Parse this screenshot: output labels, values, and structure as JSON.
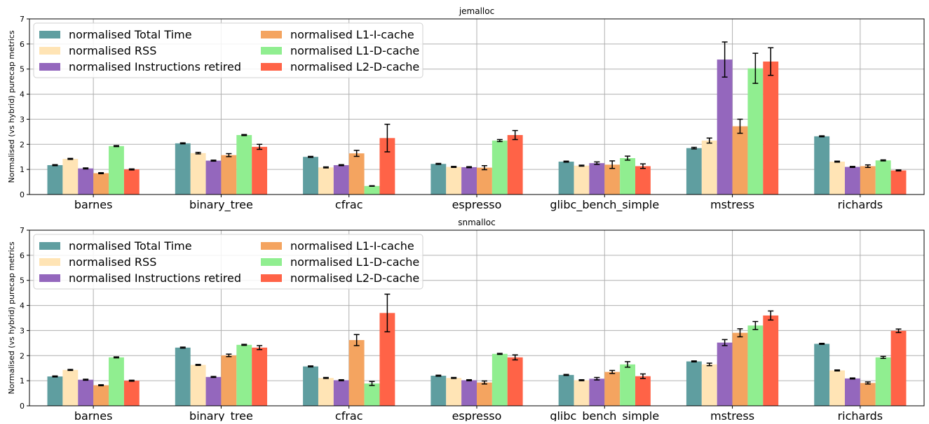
{
  "chart_data": [
    {
      "type": "bar",
      "title": "jemalloc",
      "ylabel": "Normalised (vs hybrid) purecap metrics",
      "ylim": [
        0,
        7
      ],
      "yticks": [
        0,
        1,
        2,
        3,
        4,
        5,
        6,
        7
      ],
      "grid": true,
      "legend_position": "top-left",
      "categories": [
        "barnes",
        "binary_tree",
        "cfrac",
        "espresso",
        "glibc_bench_simple",
        "mstress",
        "richards"
      ],
      "series": [
        {
          "name": "normalised Total Time",
          "color": "#5f9ea0",
          "values": [
            1.17,
            2.04,
            1.5,
            1.22,
            1.31,
            1.85,
            2.32
          ],
          "errors": [
            0.02,
            0.02,
            0.02,
            0.02,
            0.02,
            0.03,
            0.02
          ]
        },
        {
          "name": "normalised RSS",
          "color": "#ffe4b5",
          "values": [
            1.42,
            1.65,
            1.08,
            1.1,
            1.15,
            2.15,
            1.31
          ],
          "errors": [
            0.02,
            0.03,
            0.02,
            0.02,
            0.02,
            0.1,
            0.02
          ]
        },
        {
          "name": "normalised Instructions retired",
          "color": "#9467bd",
          "values": [
            1.04,
            1.35,
            1.17,
            1.09,
            1.25,
            5.38,
            1.1
          ],
          "errors": [
            0.02,
            0.02,
            0.02,
            0.02,
            0.05,
            0.7,
            0.02
          ]
        },
        {
          "name": "normalised L1-I-cache",
          "color": "#f4a460",
          "values": [
            0.85,
            1.57,
            1.64,
            1.07,
            1.19,
            2.72,
            1.13
          ],
          "errors": [
            0.02,
            0.06,
            0.12,
            0.08,
            0.15,
            0.28,
            0.05
          ]
        },
        {
          "name": "normalised L1-D-cache",
          "color": "#90ee90",
          "values": [
            1.93,
            2.37,
            0.34,
            2.15,
            1.45,
            5.03,
            1.36
          ],
          "errors": [
            0.02,
            0.02,
            0.01,
            0.04,
            0.08,
            0.6,
            0.02
          ]
        },
        {
          "name": "normalised L2-D-cache",
          "color": "#ff6347",
          "values": [
            1.0,
            1.9,
            2.25,
            2.37,
            1.13,
            5.3,
            0.96
          ],
          "errors": [
            0.02,
            0.1,
            0.55,
            0.18,
            0.09,
            0.55,
            0.02
          ]
        }
      ]
    },
    {
      "type": "bar",
      "title": "snmalloc",
      "ylabel": "Normalised (vs hybrid) purecap metrics",
      "ylim": [
        0,
        7
      ],
      "yticks": [
        0,
        1,
        2,
        3,
        4,
        5,
        6,
        7
      ],
      "grid": true,
      "legend_position": "top-left",
      "categories": [
        "barnes",
        "binary_tree",
        "cfrac",
        "espresso",
        "glibc_bench_simple",
        "mstress",
        "richards"
      ],
      "series": [
        {
          "name": "normalised Total Time",
          "color": "#5f9ea0",
          "values": [
            1.17,
            2.32,
            1.57,
            1.2,
            1.23,
            1.77,
            2.47
          ],
          "errors": [
            0.02,
            0.02,
            0.02,
            0.02,
            0.02,
            0.02,
            0.02
          ]
        },
        {
          "name": "normalised RSS",
          "color": "#ffe4b5",
          "values": [
            1.43,
            1.63,
            1.11,
            1.11,
            1.02,
            1.65,
            1.41
          ],
          "errors": [
            0.02,
            0.02,
            0.02,
            0.02,
            0.02,
            0.05,
            0.02
          ]
        },
        {
          "name": "normalised Instructions retired",
          "color": "#9467bd",
          "values": [
            1.04,
            1.15,
            1.02,
            1.02,
            1.08,
            2.52,
            1.09
          ],
          "errors": [
            0.02,
            0.02,
            0.02,
            0.02,
            0.05,
            0.12,
            0.02
          ]
        },
        {
          "name": "normalised L1-I-cache",
          "color": "#f4a460",
          "values": [
            0.82,
            2.01,
            2.62,
            0.93,
            1.35,
            2.91,
            0.91
          ],
          "errors": [
            0.02,
            0.05,
            0.22,
            0.06,
            0.06,
            0.16,
            0.04
          ]
        },
        {
          "name": "normalised L1-D-cache",
          "color": "#90ee90",
          "values": [
            1.93,
            2.43,
            0.89,
            2.07,
            1.65,
            3.2,
            1.93
          ],
          "errors": [
            0.02,
            0.02,
            0.08,
            0.02,
            0.11,
            0.16,
            0.04
          ]
        },
        {
          "name": "normalised L2-D-cache",
          "color": "#ff6347",
          "values": [
            1.0,
            2.32,
            3.7,
            1.93,
            1.18,
            3.6,
            2.99
          ],
          "errors": [
            0.02,
            0.08,
            0.75,
            0.1,
            0.09,
            0.18,
            0.07
          ]
        }
      ]
    }
  ]
}
